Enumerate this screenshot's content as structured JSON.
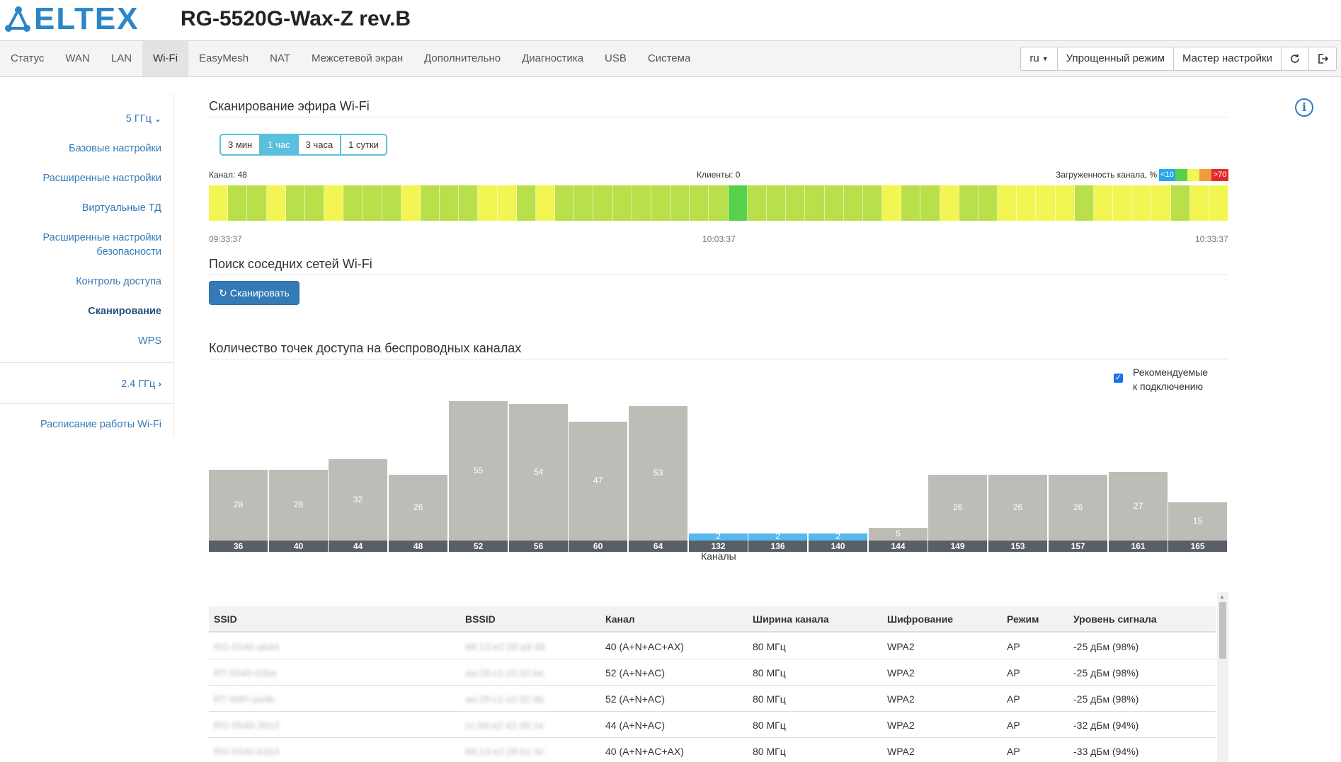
{
  "header": {
    "logo_text": "ELTEX",
    "device_title": "RG-5520G-Wax-Z rev.B"
  },
  "nav": {
    "tabs": [
      "Статус",
      "WAN",
      "LAN",
      "Wi-Fi",
      "EasyMesh",
      "NAT",
      "Межсетевой экран",
      "Дополнительно",
      "Диагностика",
      "USB",
      "Система"
    ],
    "active_tab": "Wi-Fi",
    "lang": "ru",
    "simple_mode": "Упрощенный режим",
    "wizard": "Мастер настройки",
    "refresh_icon": "refresh-icon",
    "logout_icon": "logout-icon"
  },
  "sidebar": {
    "band_5": "5 ГГц",
    "items": [
      "Базовые настройки",
      "Расширенные настройки",
      "Виртуальные ТД",
      "Расширенные настройки безопасности",
      "Контроль доступа",
      "Сканирование",
      "WPS"
    ],
    "active": "Сканирование",
    "band_24": "2.4 ГГц",
    "schedule": "Расписание работы Wi-Fi"
  },
  "airscan": {
    "title": "Сканирование эфира Wi-Fi",
    "ranges": [
      "3 мин",
      "1 час",
      "3 часа",
      "1 сутки"
    ],
    "active_range": "1 час",
    "channel_label": "Канал: 48",
    "clients_label": "Клиенты: 0",
    "load_label": "Загруженность канала, %",
    "legend_low": "<10",
    "legend_high": ">70",
    "times": [
      "09:33:37",
      "10:03:37",
      "10:33:37"
    ],
    "colors": {
      "yellow": "#f2f552",
      "lightgreen": "#b9e04a",
      "green": "#58d14a",
      "blue": "#2aa7e8",
      "orange": "#f39a3c",
      "red": "#e32a2a"
    },
    "slots": [
      "y",
      "g",
      "g",
      "y",
      "g",
      "g",
      "y",
      "g",
      "g",
      "g",
      "y",
      "g",
      "g",
      "g",
      "y",
      "y",
      "g",
      "y",
      "g",
      "g",
      "g",
      "g",
      "g",
      "g",
      "g",
      "g",
      "g",
      "G",
      "g",
      "g",
      "g",
      "g",
      "g",
      "g",
      "g",
      "y",
      "g",
      "g",
      "y",
      "g",
      "g",
      "y",
      "y",
      "y",
      "y",
      "g",
      "y",
      "y",
      "y",
      "y",
      "g",
      "y",
      "y"
    ]
  },
  "neighbors": {
    "title": "Поиск соседних сетей Wi-Fi",
    "scan_button": "Сканировать"
  },
  "channels": {
    "title": "Количество точек доступа на беспроводных каналах",
    "recommended_label_1": "Рекомендуемые",
    "recommended_label_2": "к подключению",
    "axis_title": "Каналы"
  },
  "chart_data": {
    "type": "bar",
    "title": "Количество точек доступа на беспроводных каналах",
    "xlabel": "Каналы",
    "ylabel": "",
    "categories": [
      "36",
      "40",
      "44",
      "48",
      "52",
      "56",
      "60",
      "64",
      "132",
      "136",
      "140",
      "144",
      "149",
      "153",
      "157",
      "161",
      "165"
    ],
    "values": [
      28,
      28,
      32,
      26,
      55,
      54,
      47,
      53,
      2,
      2,
      2,
      5,
      26,
      26,
      26,
      27,
      15
    ],
    "recommended": [
      "132",
      "136",
      "140"
    ],
    "colors": {
      "normal": "#bdbcb6",
      "recommended": "#57b7ee",
      "label_bg": "#5a5f66"
    },
    "ylim": [
      0,
      55
    ]
  },
  "table": {
    "headers": [
      "SSID",
      "BSSID",
      "Канал",
      "Ширина канала",
      "Шифрование",
      "Режим",
      "Уровень сигнала"
    ],
    "rows": [
      [
        "RG-5540-ab44",
        "68:13:e2:28:a9:48",
        "40 (A+N+AC+AX)",
        "80 МГц",
        "WPA2",
        "AP",
        "-25 дБм (98%)"
      ],
      [
        "RT-5540-02be",
        "aa:28:c1:c0:32:be",
        "52 (A+N+AC)",
        "80 МГц",
        "WPA2",
        "AP",
        "-25 дБм (98%)"
      ],
      [
        "RT-WiFi-ps4b",
        "aa:28:c1:c0:32:4b",
        "52 (A+N+AC)",
        "80 МГц",
        "WPA2",
        "AP",
        "-25 дБм (98%)"
      ],
      [
        "RG-5540-3912",
        "cc:9d:a2:42:39:1e",
        "44 (A+N+AC)",
        "80 МГц",
        "WPA2",
        "AP",
        "-32 дБм (94%)"
      ],
      [
        "RG-5540-b1b3",
        "68:13:e2:28:b1:3c",
        "40 (A+N+AC+AX)",
        "80 МГц",
        "WPA2",
        "AP",
        "-33 дБм (94%)"
      ]
    ]
  }
}
